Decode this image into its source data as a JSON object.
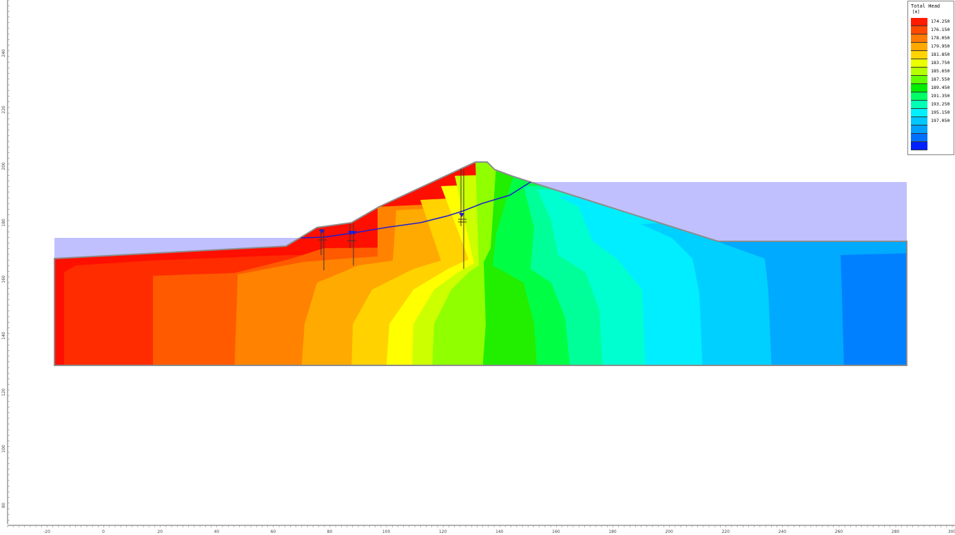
{
  "legend": {
    "title": "Total Head",
    "units": "[m]",
    "entries": [
      {
        "label": "174.250",
        "color": "#ff1a00"
      },
      {
        "label": "176.150",
        "color": "#ff4a00"
      },
      {
        "label": "178.050",
        "color": "#ff7a00"
      },
      {
        "label": "179.950",
        "color": "#ffa800"
      },
      {
        "label": "181.850",
        "color": "#ffd400"
      },
      {
        "label": "183.750",
        "color": "#eaff00"
      },
      {
        "label": "185.650",
        "color": "#b4ff00"
      },
      {
        "label": "187.550",
        "color": "#60ff00"
      },
      {
        "label": "189.450",
        "color": "#00ee00"
      },
      {
        "label": "191.350",
        "color": "#00ff66"
      },
      {
        "label": "193.250",
        "color": "#00ffb4"
      },
      {
        "label": "195.150",
        "color": "#00f0ff"
      },
      {
        "label": "197.050",
        "color": "#00c8ff"
      },
      {
        "label": "",
        "color": "#00a0ff"
      },
      {
        "label": "",
        "color": "#0070ff"
      },
      {
        "label": "",
        "color": "#0020ff"
      }
    ]
  },
  "axes": {
    "x_ticks": [
      "-20",
      "0",
      "20",
      "40",
      "60",
      "80",
      "100",
      "120",
      "140",
      "160",
      "180",
      "200",
      "220",
      "240",
      "260",
      "280",
      "300"
    ],
    "y_ticks": [
      "240",
      "220",
      "200",
      "180",
      "160",
      "140",
      "120",
      "100",
      "80"
    ]
  },
  "colors": {
    "water": "#c0c0ff",
    "phreatic_line": "#1f1fd0",
    "boundary": "#8c8c8c",
    "piezometer": "#333333"
  }
}
